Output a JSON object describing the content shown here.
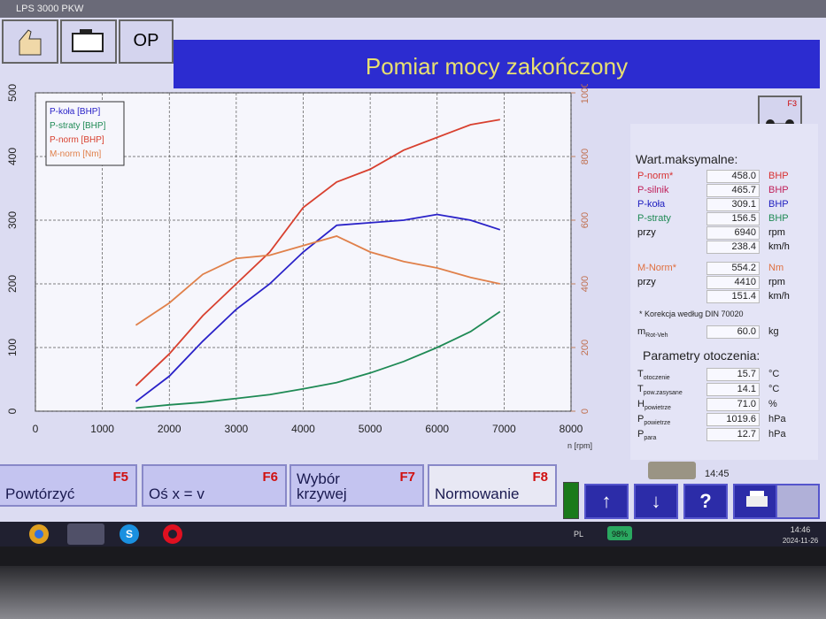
{
  "window_title": "LPS 3000 PKW",
  "toolbar": {
    "button": "OP",
    "title": "Pomiar mocy zakończony",
    "f3": "F3"
  },
  "chart_data": {
    "type": "line",
    "x": [
      1500,
      2000,
      2500,
      3000,
      3500,
      4000,
      4500,
      5000,
      5500,
      6000,
      6500,
      6940
    ],
    "x_label": "n [rpm]",
    "xlim": [
      0,
      8000
    ],
    "xticks": [
      0,
      1000,
      2000,
      3000,
      4000,
      5000,
      6000,
      7000,
      8000
    ],
    "ylim": [
      0,
      500
    ],
    "yticks": [
      0,
      100,
      200,
      300,
      400,
      500
    ],
    "y2lim": [
      0,
      1000
    ],
    "y2ticks": [
      0,
      200,
      400,
      600,
      800,
      1000
    ],
    "grid": true,
    "legend": "upper left",
    "series": [
      {
        "name": "P-koła [BHP]",
        "color": "#2a22c8",
        "values": [
          15,
          55,
          110,
          160,
          200,
          250,
          292,
          296,
          300,
          309,
          300,
          285
        ]
      },
      {
        "name": "P-straty [BHP]",
        "color": "#1f8a55",
        "values": [
          5,
          10,
          14,
          20,
          26,
          35,
          45,
          60,
          78,
          100,
          125,
          156.5
        ]
      },
      {
        "name": "P-norm [BHP]",
        "color": "#d8402f",
        "values": [
          40,
          90,
          150,
          200,
          250,
          320,
          360,
          380,
          410,
          430,
          450,
          458
        ]
      },
      {
        "name": "M-norm [Nm]",
        "color": "#e0804a",
        "axis": "y2",
        "values": [
          270,
          340,
          430,
          480,
          490,
          520,
          550,
          500,
          470,
          450,
          420,
          400
        ]
      }
    ]
  },
  "panel": {
    "max_title": "Wart.maksymalne:",
    "max_rows": [
      {
        "label": "P-norm*",
        "value": "458.0",
        "unit": "BHP",
        "color": "#d83030"
      },
      {
        "label": "P-silnik",
        "value": "465.7",
        "unit": "BHP",
        "color": "#c0205a"
      },
      {
        "label": "P-koła",
        "value": "309.1",
        "unit": "BHP",
        "color": "#2020c0"
      },
      {
        "label": "P-straty",
        "value": "156.5",
        "unit": "BHP",
        "color": "#1f8a55"
      },
      {
        "label": "przy",
        "value": "6940",
        "unit": "rpm",
        "color": "#111111"
      },
      {
        "value": "238.4",
        "unit": "km/h",
        "color": "#111111"
      },
      {
        "label": "M-Norm*",
        "value": "554.2",
        "unit": "Nm",
        "color": "#e07040"
      },
      {
        "label": "przy",
        "value": "4410",
        "unit": "rpm",
        "color": "#111111"
      },
      {
        "value": "151.4",
        "unit": "km/h",
        "color": "#111111"
      }
    ],
    "note": "* Korekcja według DIN 70020",
    "mass": {
      "label": "m",
      "sub": "Rot-Veh",
      "value": "60.0",
      "unit": "kg"
    },
    "env_title": "Parametry otoczenia:",
    "env_rows": [
      {
        "label": "T",
        "sub": "otoczenie",
        "value": "15.7",
        "unit": "°C"
      },
      {
        "label": "T",
        "sub": "pow.zasysane",
        "value": "14.1",
        "unit": "°C"
      },
      {
        "label": "H",
        "sub": "powietrze",
        "value": "71.0",
        "unit": "%"
      },
      {
        "label": "P",
        "sub": "powietrze",
        "value": "1019.6",
        "unit": "hPa"
      },
      {
        "label": "P",
        "sub": "para",
        "value": "12.7",
        "unit": "hPa"
      }
    ],
    "time": "14:45"
  },
  "fkeys": [
    {
      "label": "Powtórzyć",
      "key": "F5"
    },
    {
      "label": "Oś x = v",
      "key": "F6"
    },
    {
      "label": "Wybór krzywej",
      "key": "F7"
    },
    {
      "label": "Normowanie",
      "key": "F8"
    }
  ],
  "nav_buttons": [
    "↑",
    "↓",
    "?"
  ],
  "taskbar": {
    "app_letter": "S",
    "lang": "PL",
    "battery": "98%",
    "time": "14:46",
    "date": "2024-11-26"
  }
}
